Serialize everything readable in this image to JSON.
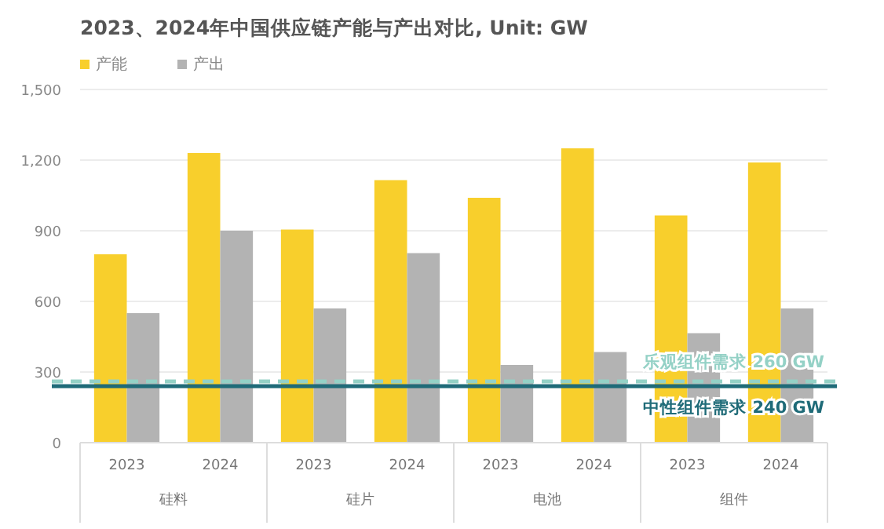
{
  "chart_data": {
    "type": "bar",
    "title": "2023、2024年中国供应链产能与产出对比, Unit: GW",
    "categories": [
      "2023",
      "2024",
      "2023",
      "2024",
      "2023",
      "2024",
      "2023",
      "2024"
    ],
    "series": [
      {
        "name": "产能",
        "color": "#f8cf2c",
        "values": [
          800,
          1230,
          905,
          1115,
          1040,
          1250,
          965,
          1190
        ]
      },
      {
        "name": "产出",
        "color": "#b3b3b3",
        "values": [
          550,
          900,
          570,
          805,
          330,
          385,
          465,
          570
        ]
      }
    ],
    "ylim": [
      0,
      1500
    ],
    "yticks": [
      0,
      {
        "value": 300,
        "label": "300"
      },
      {
        "value": 600,
        "label": "600"
      },
      {
        "value": 900,
        "label": "900"
      },
      {
        "value": 1200,
        "label": "1,200"
      },
      {
        "value": 1500,
        "label": "1,500"
      }
    ],
    "grid": "y",
    "legend": "top left",
    "ref_lines": [
      {
        "axis": "y",
        "value": 260,
        "label": "乐观组件需求 260 GW",
        "color": "#94d1c6",
        "line_style": "dashed"
      },
      {
        "axis": "y",
        "value": 240,
        "label": "中性组件需求 240 GW",
        "color": "#1f6b78",
        "line_style": "solid"
      }
    ],
    "annotations": [
      "硅料",
      "硅片",
      "电池",
      "组件"
    ]
  }
}
